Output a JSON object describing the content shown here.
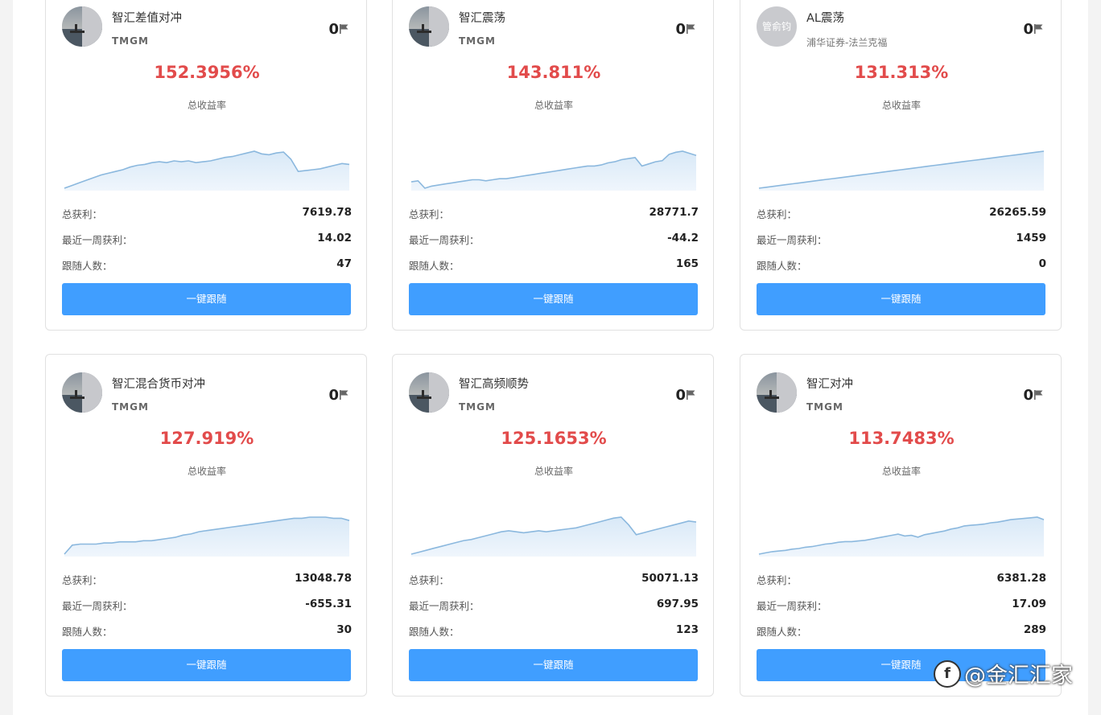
{
  "cards": [
    {
      "name": "智汇差值对冲",
      "broker": "TMGM",
      "flag_count": "0",
      "rate": "152.3956%",
      "rate_label": "总收益率",
      "profit_label": "总获利：",
      "profit": "7619.78",
      "week_label": "最近一周获利：",
      "week": "14.02",
      "followers_label": "跟随人数：",
      "followers": "47",
      "button": "一键跟随",
      "avatar_type": "image"
    },
    {
      "name": "智汇震荡",
      "broker": "TMGM",
      "flag_count": "0",
      "rate": "143.811%",
      "rate_label": "总收益率",
      "profit_label": "总获利：",
      "profit": "28771.7",
      "week_label": "最近一周获利：",
      "week": "-44.2",
      "followers_label": "跟随人数：",
      "followers": "165",
      "button": "一键跟随",
      "avatar_type": "image"
    },
    {
      "name": "AL震荡",
      "broker": "浦华证券-法兰克福",
      "flag_count": "0",
      "rate": "131.313%",
      "rate_label": "总收益率",
      "profit_label": "总获利：",
      "profit": "26265.59",
      "week_label": "最近一周获利：",
      "week": "1459",
      "followers_label": "跟随人数：",
      "followers": "0",
      "button": "一键跟随",
      "avatar_type": "text",
      "avatar_text": "管俞钧"
    },
    {
      "name": "智汇混合货币对冲",
      "broker": "TMGM",
      "flag_count": "0",
      "rate": "127.919%",
      "rate_label": "总收益率",
      "profit_label": "总获利：",
      "profit": "13048.78",
      "week_label": "最近一周获利：",
      "week": "-655.31",
      "followers_label": "跟随人数：",
      "followers": "30",
      "button": "一键跟随",
      "avatar_type": "image"
    },
    {
      "name": "智汇高频顺势",
      "broker": "TMGM",
      "flag_count": "0",
      "rate": "125.1653%",
      "rate_label": "总收益率",
      "profit_label": "总获利：",
      "profit": "50071.13",
      "week_label": "最近一周获利：",
      "week": "697.95",
      "followers_label": "跟随人数：",
      "followers": "123",
      "button": "一键跟随",
      "avatar_type": "image"
    },
    {
      "name": "智汇对冲",
      "broker": "TMGM",
      "flag_count": "0",
      "rate": "113.7483%",
      "rate_label": "总收益率",
      "profit_label": "总获利：",
      "profit": "6381.28",
      "week_label": "最近一周获利：",
      "week": "17.09",
      "followers_label": "跟随人数：",
      "followers": "289",
      "button": "一键跟随",
      "avatar_type": "image"
    }
  ],
  "chart_data": [
    {
      "type": "area",
      "values": [
        0,
        3,
        6,
        9,
        12,
        15,
        17,
        19,
        21,
        24,
        26,
        27,
        29,
        30,
        29,
        31,
        30,
        31,
        29,
        30,
        31,
        33,
        35,
        36,
        38,
        40,
        42,
        39,
        38,
        40,
        41,
        33,
        19,
        20,
        21,
        22,
        24,
        26,
        28,
        27
      ]
    },
    {
      "type": "area",
      "values": [
        9,
        10,
        3,
        5,
        6,
        7,
        8,
        9,
        10,
        11,
        11,
        10,
        11,
        12,
        12,
        13,
        14,
        15,
        16,
        17,
        18,
        19,
        20,
        21,
        22,
        23,
        24,
        24,
        25,
        27,
        28,
        30,
        31,
        32,
        24,
        26,
        28,
        29,
        35,
        37,
        38,
        36,
        34
      ]
    },
    {
      "type": "area",
      "values": [
        0,
        1,
        2,
        3,
        4,
        5,
        6,
        7,
        8,
        9,
        10,
        11,
        12,
        13,
        14,
        15,
        16,
        17,
        18,
        19,
        20,
        21,
        22,
        23,
        24,
        25,
        26,
        27,
        28,
        29,
        30,
        31,
        32,
        33,
        34,
        35,
        36,
        37,
        38,
        39,
        40,
        41,
        42
      ]
    },
    {
      "type": "area",
      "values": [
        0,
        8,
        9,
        9,
        9,
        10,
        10,
        11,
        11,
        11,
        12,
        12,
        13,
        14,
        15,
        17,
        18,
        20,
        21,
        22,
        23,
        24,
        25,
        26,
        27,
        28,
        29,
        30,
        31,
        32,
        32,
        33,
        33,
        33,
        32,
        32,
        30
      ]
    },
    {
      "type": "area",
      "values": [
        0,
        2,
        4,
        6,
        8,
        10,
        12,
        14,
        15,
        17,
        19,
        21,
        23,
        24,
        23,
        22,
        23,
        24,
        23,
        24,
        25,
        26,
        27,
        29,
        31,
        33,
        35,
        37,
        38,
        30,
        20,
        22,
        24,
        26,
        28,
        30,
        32,
        34,
        33
      ]
    },
    {
      "type": "area",
      "values": [
        0,
        2,
        4,
        5,
        6,
        8,
        9,
        11,
        12,
        14,
        16,
        17,
        19,
        20,
        20,
        21,
        22,
        24,
        26,
        28,
        30,
        32,
        29,
        30,
        27,
        31,
        33,
        35,
        37,
        40,
        42,
        45,
        46,
        47,
        48,
        50,
        51,
        53,
        55,
        56,
        57,
        58,
        59,
        55
      ]
    }
  ],
  "colors": {
    "accent": "#409eff",
    "rate": "#e24b4b",
    "line": "#8bb8de",
    "fill": "#d4e6f6"
  },
  "watermark": "@金汇汇家"
}
